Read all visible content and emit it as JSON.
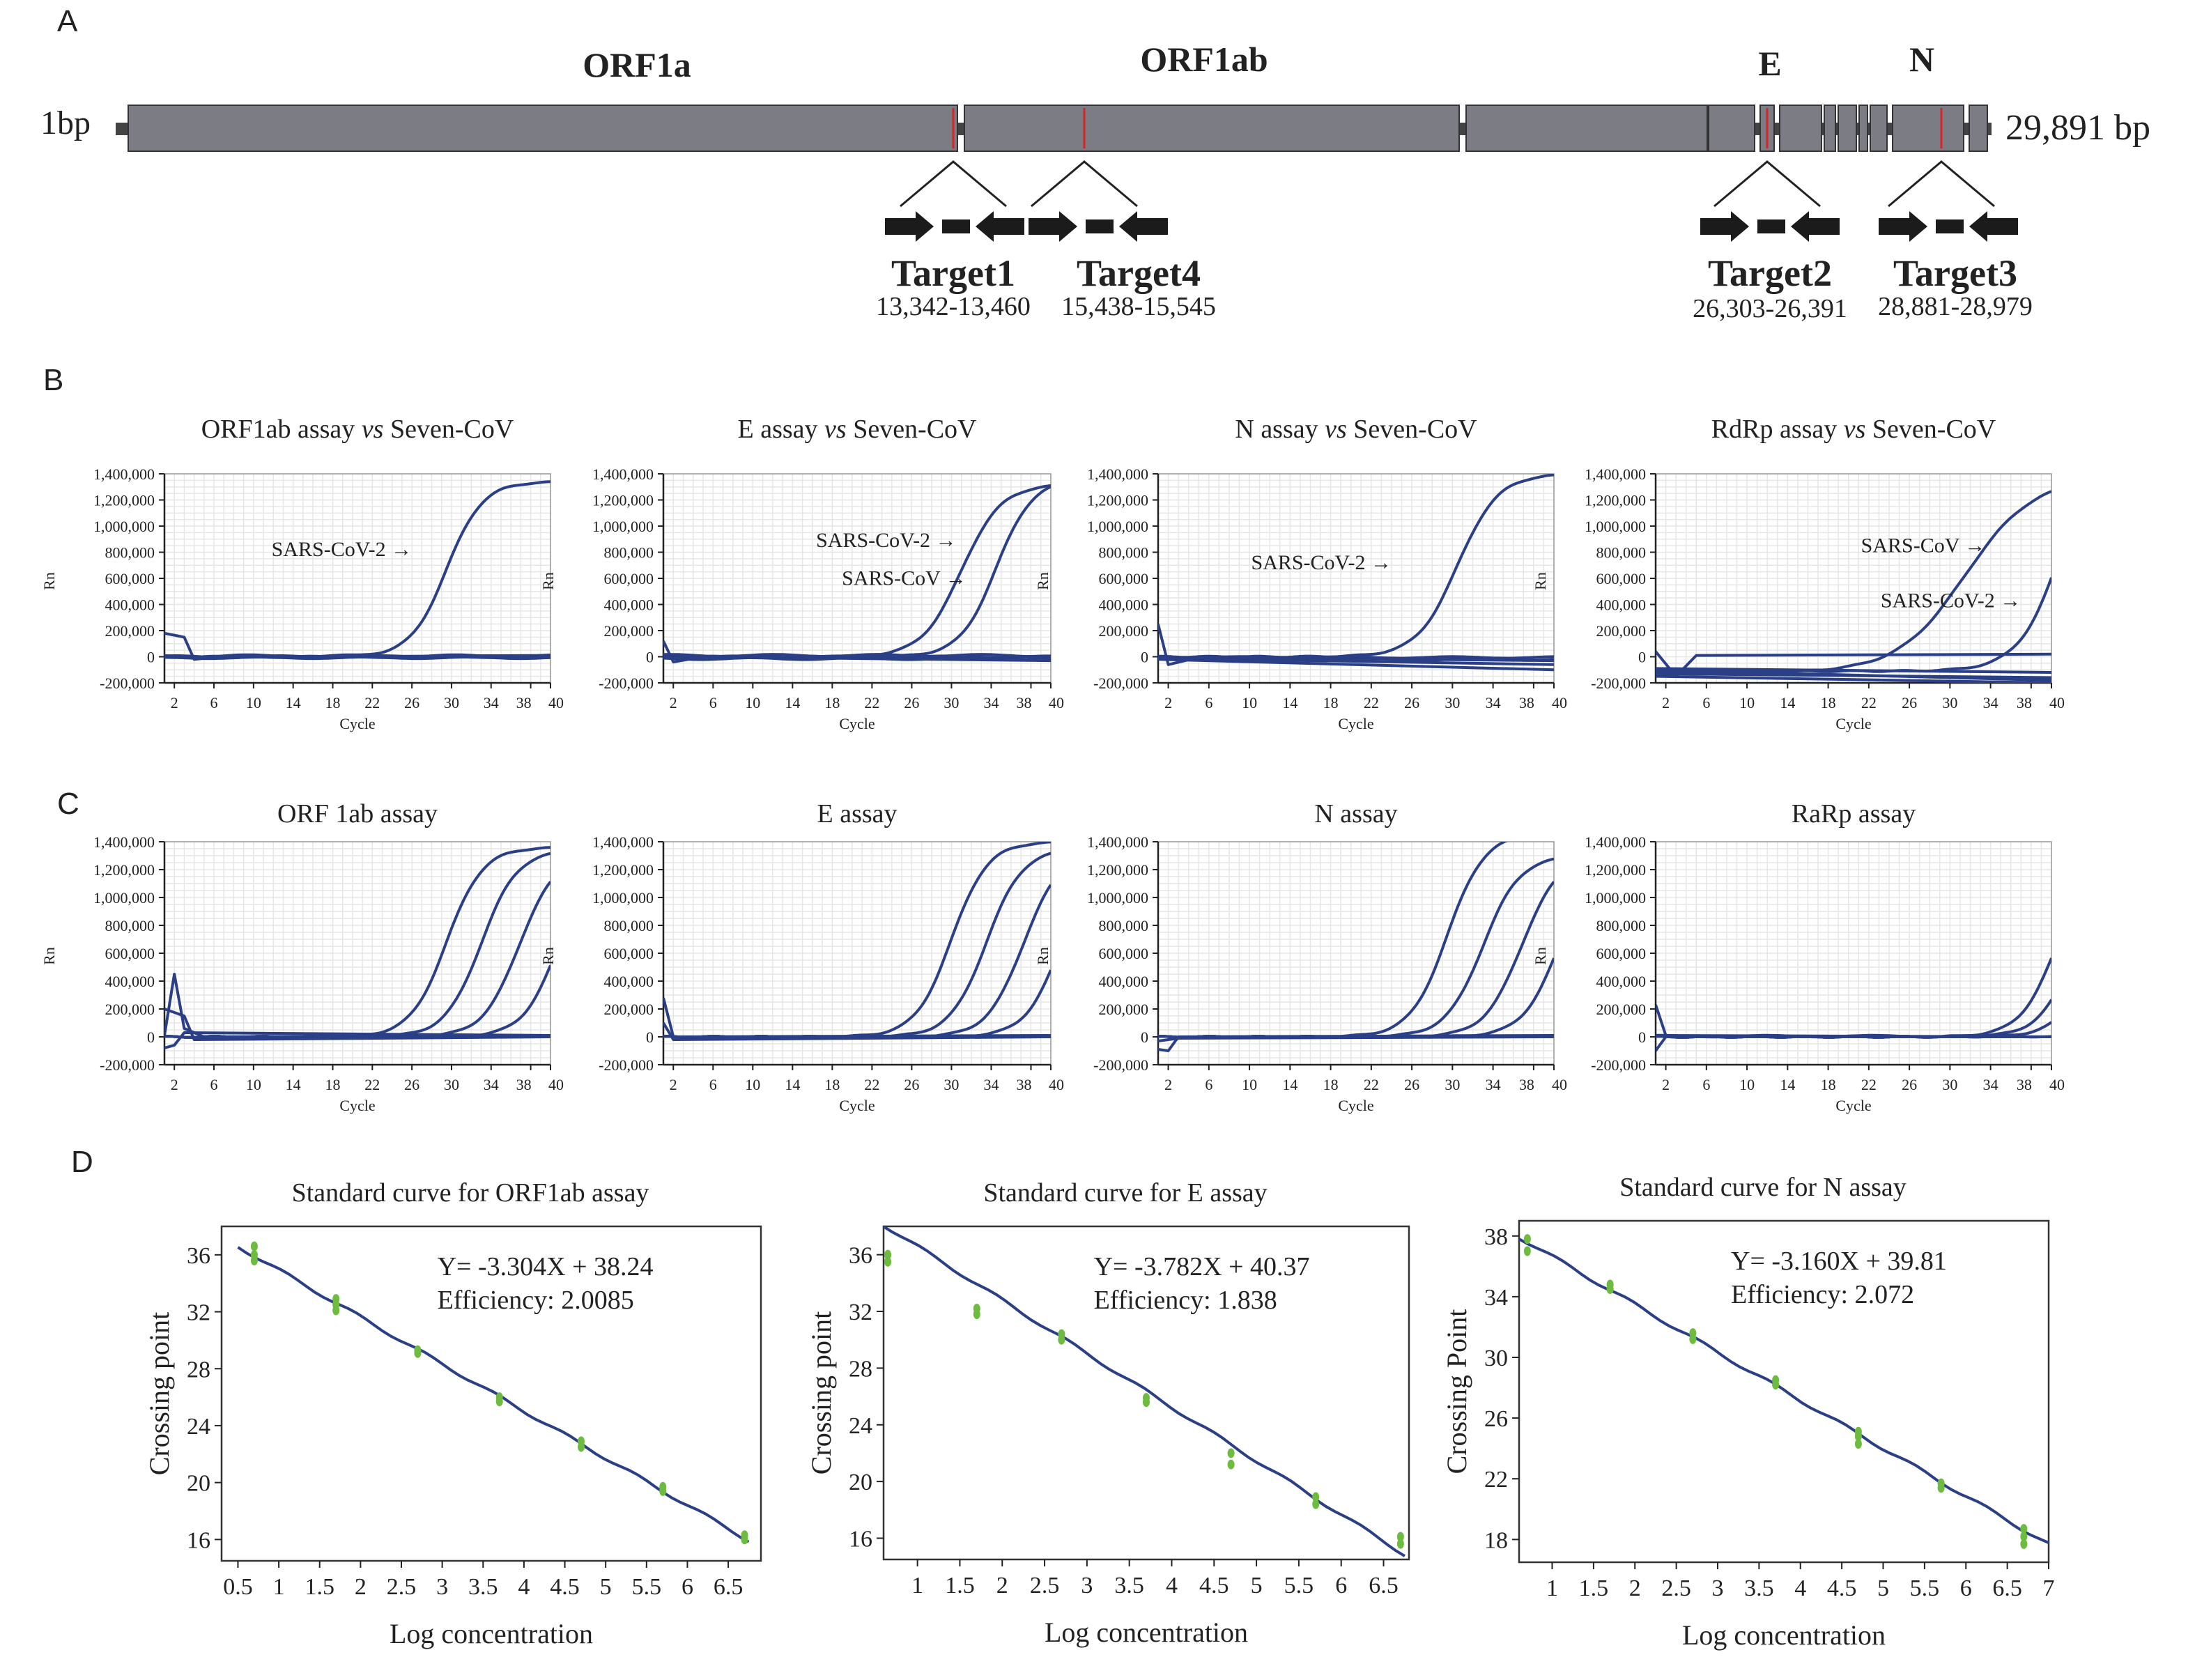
{
  "panel_labels": {
    "a": "A",
    "b": "B",
    "c": "C",
    "d": "D"
  },
  "genome": {
    "start_label": "1bp",
    "end_label": "29,891 bp",
    "genes": [
      "ORF1a",
      "ORF1ab",
      "E",
      "N"
    ],
    "targets": [
      {
        "name": "Target1",
        "range": "13,342-13,460"
      },
      {
        "name": "Target4",
        "range": "15,438-15,545"
      },
      {
        "name": "Target2",
        "range": "26,303-26,391"
      },
      {
        "name": "Target3",
        "range": "28,881-28,979"
      }
    ]
  },
  "colors": {
    "gene_fill": "#7b7c84",
    "marker": "#d7252a",
    "curve": "#2a3f86",
    "point": "#6dbb3f",
    "grid": "#e6e6e6"
  },
  "amp_y_ticks": [
    "1,400,000",
    "1,200,000",
    "1,000,000",
    "800,000",
    "600,000",
    "400,000",
    "200,000",
    "0",
    "-200,000"
  ],
  "amp_x_ticks": [
    "2",
    "6",
    "10",
    "14",
    "18",
    "22",
    "26",
    "30",
    "34",
    "38",
    "40"
  ],
  "chart_data": [
    {
      "type": "line",
      "panel": "B",
      "title": "ORF1ab assay vs Seven-CoV",
      "title_parts": [
        "ORF1ab assay ",
        "vs",
        " Seven-CoV"
      ],
      "xlabel": "Cycle",
      "ylabel": "Rn",
      "xlim": [
        1,
        40
      ],
      "ylim": [
        -200000,
        1400000
      ],
      "grid": true,
      "annotations": [
        {
          "text": "SARS-CoV-2 →",
          "x": 26,
          "y": 770000
        }
      ],
      "series": [
        {
          "type": "sigmoid",
          "amp": 1340000,
          "mid": 29.5,
          "k": 0.55
        },
        {
          "type": "spike",
          "values": [
            [
              1,
              180000
            ],
            [
              3,
              150000
            ],
            [
              4,
              -20000
            ],
            [
              6,
              -5000
            ],
            [
              40,
              10000
            ]
          ]
        },
        {
          "type": "wavy",
          "base": 0,
          "wobble": 8000,
          "phase": 0.3
        },
        {
          "type": "wavy",
          "base": -8000,
          "wobble": 6000,
          "phase": 1.4
        },
        {
          "type": "wavy",
          "base": 6000,
          "wobble": 9000,
          "phase": 2.2
        },
        {
          "type": "wavy",
          "base": -2000,
          "wobble": 5000,
          "phase": 3.1
        }
      ]
    },
    {
      "type": "line",
      "panel": "B",
      "title": "E assay vs Seven-CoV",
      "title_parts": [
        "E assay ",
        "vs",
        " Seven-CoV"
      ],
      "xlabel": "Cycle",
      "ylabel": "Rn",
      "xlim": [
        1,
        40
      ],
      "ylim": [
        -200000,
        1400000
      ],
      "grid": true,
      "annotations": [
        {
          "text": "SARS-CoV-2 →",
          "x": 30.5,
          "y": 840000
        },
        {
          "text": "SARS-CoV →",
          "x": 31.5,
          "y": 550000
        }
      ],
      "series": [
        {
          "type": "sigmoid",
          "amp": 1320000,
          "mid": 31,
          "k": 0.5
        },
        {
          "type": "sigmoid",
          "amp": 1360000,
          "mid": 34.5,
          "k": 0.55
        },
        {
          "type": "spike",
          "values": [
            [
              1,
              120000
            ],
            [
              2,
              -40000
            ],
            [
              5,
              0
            ],
            [
              40,
              -30000
            ]
          ]
        },
        {
          "type": "wavy",
          "base": 10000,
          "wobble": 8000,
          "phase": 0.6
        },
        {
          "type": "wavy",
          "base": -15000,
          "wobble": 7000,
          "phase": 1.9
        },
        {
          "type": "wavy",
          "base": 0,
          "wobble": 6000,
          "phase": 2.8
        }
      ]
    },
    {
      "type": "line",
      "panel": "B",
      "title": "N assay vs Seven-CoV",
      "title_parts": [
        "N assay ",
        "vs",
        " Seven-CoV"
      ],
      "xlabel": "Cycle",
      "ylabel": "Rn",
      "xlim": [
        1,
        40
      ],
      "ylim": [
        -200000,
        1400000
      ],
      "grid": true,
      "annotations": [
        {
          "text": "SARS-CoV-2 →",
          "x": 24,
          "y": 670000
        }
      ],
      "series": [
        {
          "type": "sigmoid",
          "amp": 1400000,
          "mid": 30.5,
          "k": 0.5
        },
        {
          "type": "spike",
          "values": [
            [
              1,
              250000
            ],
            [
              2,
              -60000
            ],
            [
              5,
              -5000
            ],
            [
              40,
              -30000
            ]
          ]
        },
        {
          "type": "drift",
          "values": [
            [
              1,
              -20000
            ],
            [
              40,
              -100000
            ]
          ]
        },
        {
          "type": "drift",
          "values": [
            [
              1,
              -10000
            ],
            [
              40,
              -60000
            ]
          ]
        },
        {
          "type": "wavy",
          "base": -20000,
          "wobble": 7000,
          "phase": 1.1
        },
        {
          "type": "wavy",
          "base": -5000,
          "wobble": 6000,
          "phase": 2.4
        }
      ]
    },
    {
      "type": "line",
      "panel": "B",
      "title": "RdRp assay vs Seven-CoV",
      "title_parts": [
        "RdRp assay ",
        "vs",
        " Seven-CoV"
      ],
      "xlabel": "Cycle",
      "ylabel": "Rn",
      "xlim": [
        1,
        40
      ],
      "ylim": [
        -200000,
        1400000
      ],
      "grid": true,
      "annotations": [
        {
          "text": "SARS-CoV →",
          "x": 33.5,
          "y": 800000
        },
        {
          "text": "SARS-CoV-2 →",
          "x": 37,
          "y": 380000
        }
      ],
      "series": [
        {
          "type": "sigmoid",
          "amp": 1370000,
          "mid": 31.5,
          "k": 0.3,
          "base": -120000
        },
        {
          "type": "sigmoid",
          "amp": 2000000,
          "mid": 41.5,
          "k": 0.45,
          "base": -110000
        },
        {
          "type": "drift",
          "values": [
            [
              1,
              40000
            ],
            [
              3,
              -150000
            ],
            [
              5,
              10000
            ],
            [
              40,
              20000
            ]
          ]
        },
        {
          "type": "drift",
          "values": [
            [
              1,
              -130000
            ],
            [
              40,
              -160000
            ]
          ]
        },
        {
          "type": "drift",
          "values": [
            [
              1,
              -100000
            ],
            [
              40,
              -180000
            ]
          ]
        },
        {
          "type": "drift",
          "values": [
            [
              1,
              -90000
            ],
            [
              40,
              -120000
            ]
          ]
        },
        {
          "type": "drift",
          "values": [
            [
              1,
              -150000
            ],
            [
              40,
              -200000
            ]
          ]
        }
      ]
    },
    {
      "type": "line",
      "panel": "C",
      "title": "ORF 1ab assay",
      "xlabel": "Cycle",
      "ylabel": "Rn",
      "xlim": [
        1,
        40
      ],
      "ylim": [
        -200000,
        1400000
      ],
      "grid": true,
      "series": [
        {
          "type": "sigmoid",
          "amp": 1360000,
          "mid": 29.5,
          "k": 0.55
        },
        {
          "type": "sigmoid",
          "amp": 1340000,
          "mid": 33,
          "k": 0.55
        },
        {
          "type": "sigmoid",
          "amp": 1300000,
          "mid": 36.8,
          "k": 0.55
        },
        {
          "type": "sigmoid",
          "amp": 1300000,
          "mid": 40.8,
          "k": 0.55
        },
        {
          "type": "spike",
          "values": [
            [
              1,
              10000
            ],
            [
              2,
              450000
            ],
            [
              3,
              60000
            ],
            [
              5,
              0
            ],
            [
              40,
              10000
            ]
          ]
        },
        {
          "type": "spike",
          "values": [
            [
              1,
              200000
            ],
            [
              3,
              150000
            ],
            [
              4,
              -20000
            ],
            [
              40,
              0
            ]
          ]
        },
        {
          "type": "spike",
          "values": [
            [
              1,
              -80000
            ],
            [
              2,
              -60000
            ],
            [
              3,
              30000
            ],
            [
              40,
              10000
            ]
          ]
        }
      ]
    },
    {
      "type": "line",
      "panel": "C",
      "title": "E assay",
      "xlabel": "Cycle",
      "ylabel": "Rn",
      "xlim": [
        1,
        40
      ],
      "ylim": [
        -200000,
        1400000
      ],
      "grid": true,
      "series": [
        {
          "type": "sigmoid",
          "amp": 1400000,
          "mid": 30,
          "k": 0.55
        },
        {
          "type": "sigmoid",
          "amp": 1350000,
          "mid": 33.5,
          "k": 0.55
        },
        {
          "type": "sigmoid",
          "amp": 1320000,
          "mid": 37.2,
          "k": 0.55
        },
        {
          "type": "sigmoid",
          "amp": 1300000,
          "mid": 41,
          "k": 0.55
        },
        {
          "type": "spike",
          "values": [
            [
              1,
              280000
            ],
            [
              2,
              0
            ],
            [
              40,
              10000
            ]
          ]
        },
        {
          "type": "spike",
          "values": [
            [
              1,
              100000
            ],
            [
              2,
              -20000
            ],
            [
              40,
              0
            ]
          ]
        }
      ]
    },
    {
      "type": "line",
      "panel": "C",
      "title": "N assay",
      "xlabel": "Cycle",
      "ylabel": "Rn",
      "xlim": [
        1,
        40
      ],
      "ylim": [
        -200000,
        1400000
      ],
      "grid": true,
      "series": [
        {
          "type": "sigmoid",
          "amp": 1460000,
          "mid": 29.5,
          "k": 0.55
        },
        {
          "type": "sigmoid",
          "amp": 1300000,
          "mid": 33,
          "k": 0.55
        },
        {
          "type": "sigmoid",
          "amp": 1300000,
          "mid": 36.8,
          "k": 0.55
        },
        {
          "type": "sigmoid",
          "amp": 1300000,
          "mid": 40.5,
          "k": 0.55
        },
        {
          "type": "spike",
          "values": [
            [
              1,
              -90000
            ],
            [
              2,
              -100000
            ],
            [
              3,
              0
            ],
            [
              40,
              10000
            ]
          ]
        },
        {
          "type": "spike",
          "values": [
            [
              1,
              -30000
            ],
            [
              2,
              -20000
            ],
            [
              3,
              -10000
            ],
            [
              40,
              0
            ]
          ]
        }
      ]
    },
    {
      "type": "line",
      "panel": "C",
      "title": "RaRp assay",
      "xlabel": "Cycle",
      "ylabel": "Rn",
      "xlim": [
        1,
        40
      ],
      "ylim": [
        -200000,
        1400000
      ],
      "grid": true,
      "series": [
        {
          "type": "sigmoid",
          "amp": 1300000,
          "mid": 40.5,
          "k": 0.55
        },
        {
          "type": "sigmoid",
          "amp": 1300000,
          "mid": 42.5,
          "k": 0.55
        },
        {
          "type": "sigmoid",
          "amp": 1300000,
          "mid": 44.5,
          "k": 0.55
        },
        {
          "type": "spike",
          "values": [
            [
              1,
              230000
            ],
            [
              2,
              10000
            ],
            [
              40,
              0
            ]
          ]
        },
        {
          "type": "spike",
          "values": [
            [
              1,
              -100000
            ],
            [
              2,
              0
            ],
            [
              40,
              0
            ]
          ]
        },
        {
          "type": "wavy",
          "base": 5000,
          "wobble": 6000,
          "phase": 0.7
        }
      ]
    },
    {
      "type": "scatter",
      "panel": "D",
      "title": "Standard curve for ORF1ab assay",
      "xlabel": "Log concentration",
      "ylabel": "Crossing point",
      "equation": "Y= -3.304X + 38.24",
      "efficiency": "Efficiency: 2.0085",
      "xlim": [
        0.3,
        6.9
      ],
      "ylim": [
        14.5,
        38
      ],
      "x_ticks": [
        0.5,
        1,
        1.5,
        2,
        2.5,
        3,
        3.5,
        4,
        4.5,
        5,
        5.5,
        6,
        6.5
      ],
      "x_tick_labels": [
        "0.5",
        "1",
        "1.5",
        "2",
        "2.5",
        "3",
        "3.5",
        "4",
        "4.5",
        "5",
        "5.5",
        "6",
        "6.5"
      ],
      "y_ticks": [
        16,
        20,
        24,
        28,
        32,
        36
      ],
      "fit": {
        "slope": -3.304,
        "intercept": 38.24,
        "x": [
          0.5,
          6.75
        ]
      },
      "points": [
        [
          0.7,
          36.6
        ],
        [
          0.7,
          36.0
        ],
        [
          0.7,
          35.6
        ],
        [
          1.7,
          32.9
        ],
        [
          1.7,
          32.5
        ],
        [
          1.7,
          32.1
        ],
        [
          2.7,
          29.3
        ],
        [
          2.7,
          29.1
        ],
        [
          3.7,
          26.0
        ],
        [
          3.7,
          25.7
        ],
        [
          4.7,
          22.9
        ],
        [
          4.7,
          22.5
        ],
        [
          5.7,
          19.7
        ],
        [
          5.7,
          19.4
        ],
        [
          6.7,
          16.3
        ],
        [
          6.7,
          16.0
        ]
      ]
    },
    {
      "type": "scatter",
      "panel": "D",
      "title": "Standard curve for E assay",
      "xlabel": "Log concentration",
      "ylabel": "Crossing point",
      "equation": "Y= -3.782X + 40.37",
      "efficiency": "Efficiency: 1.838",
      "xlim": [
        0.6,
        6.8
      ],
      "ylim": [
        14.5,
        38
      ],
      "x_ticks": [
        1,
        1.5,
        2,
        2.5,
        3,
        3.5,
        4,
        4.5,
        5,
        5.5,
        6,
        6.5
      ],
      "x_tick_labels": [
        "1",
        "1.5",
        "2",
        "2.5",
        "3",
        "3.5",
        "4",
        "4.5",
        "5",
        "5.5",
        "6",
        "6.5"
      ],
      "y_ticks": [
        16,
        20,
        24,
        28,
        32,
        36
      ],
      "fit": {
        "slope": -3.782,
        "intercept": 40.37,
        "x": [
          0.6,
          6.75
        ]
      },
      "points": [
        [
          0.65,
          36.0
        ],
        [
          0.65,
          35.5
        ],
        [
          1.7,
          32.2
        ],
        [
          1.7,
          31.8
        ],
        [
          2.7,
          30.4
        ],
        [
          2.7,
          30.0
        ],
        [
          3.7,
          25.9
        ],
        [
          3.7,
          25.6
        ],
        [
          4.7,
          22.0
        ],
        [
          4.7,
          21.2
        ],
        [
          5.7,
          18.9
        ],
        [
          5.7,
          18.4
        ],
        [
          6.7,
          16.1
        ],
        [
          6.7,
          15.6
        ]
      ]
    },
    {
      "type": "scatter",
      "panel": "D",
      "title": "Standard curve for N assay",
      "xlabel": "Log concentration",
      "ylabel": "Crossing Point",
      "equation": "Y= -3.160X + 39.81",
      "efficiency": "Efficiency: 2.072",
      "xlim": [
        0.6,
        7.0
      ],
      "ylim": [
        16.5,
        39
      ],
      "x_ticks": [
        1,
        1.5,
        2,
        2.5,
        3,
        3.5,
        4,
        4.5,
        5,
        5.5,
        6,
        6.5,
        7
      ],
      "x_tick_labels": [
        "1",
        "1.5",
        "2",
        "2.5",
        "3",
        "3.5",
        "4",
        "4.5",
        "5",
        "5.5",
        "6",
        "6.5",
        "7"
      ],
      "y_ticks": [
        18,
        22,
        26,
        30,
        34,
        38
      ],
      "fit": {
        "slope": -3.16,
        "intercept": 39.81,
        "x": [
          0.6,
          7.0
        ]
      },
      "points": [
        [
          0.7,
          37.8
        ],
        [
          0.7,
          37.0
        ],
        [
          1.7,
          34.8
        ],
        [
          1.7,
          34.5
        ],
        [
          2.7,
          31.6
        ],
        [
          2.7,
          31.2
        ],
        [
          3.7,
          28.5
        ],
        [
          3.7,
          28.2
        ],
        [
          4.7,
          25.1
        ],
        [
          4.7,
          24.8
        ],
        [
          4.7,
          24.3
        ],
        [
          5.7,
          21.7
        ],
        [
          5.7,
          21.4
        ],
        [
          6.7,
          18.7
        ],
        [
          6.7,
          18.2
        ],
        [
          6.7,
          17.7
        ]
      ]
    }
  ]
}
